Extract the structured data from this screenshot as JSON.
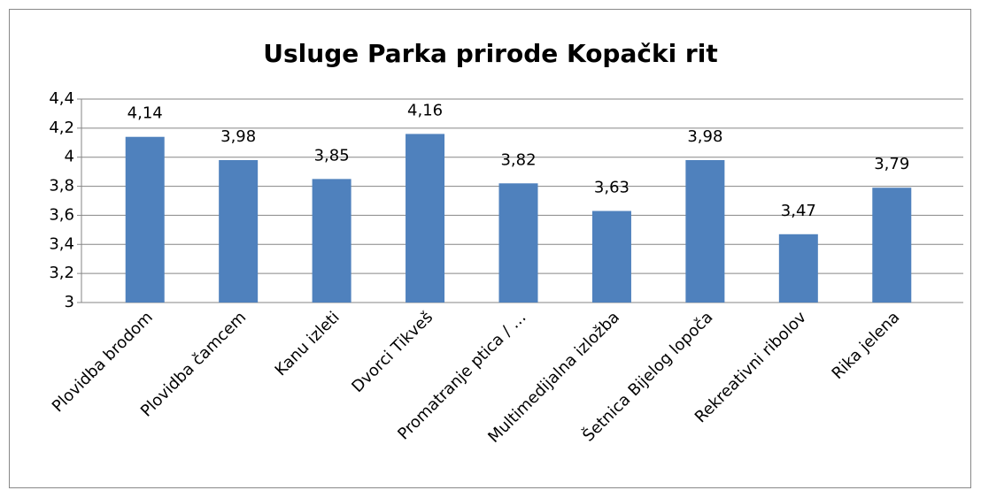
{
  "chart_data": {
    "type": "bar",
    "title": "Usluge Parka prirode Kopački rit",
    "categories": [
      "Plovidba brodom",
      "Plovidba čamcem",
      "Kanu izleti",
      "Dvorci Tikveš",
      "Promatranje ptica / …",
      "Multimedijalna izložba",
      "Šetnica Bijelog lopoča",
      "Rekreativni ribolov",
      "Rika jelena"
    ],
    "values": [
      4.14,
      3.98,
      3.85,
      4.16,
      3.82,
      3.63,
      3.98,
      3.47,
      3.79
    ],
    "value_labels": [
      "4,14",
      "3,98",
      "3,85",
      "4,16",
      "3,82",
      "3,63",
      "3,98",
      "3,47",
      "3,79"
    ],
    "color": "#4f81bd",
    "ylim": [
      3,
      4.4
    ],
    "yticks": [
      3,
      {
        "value": 3.2,
        "label": "3,2"
      },
      {
        "value": 3.4,
        "label": "3,4"
      },
      {
        "value": 3.6,
        "label": "3,6"
      },
      {
        "value": 3.8,
        "label": "3,8"
      },
      4,
      {
        "value": 4.2,
        "label": "4,2"
      },
      {
        "value": 4.4,
        "label": "4,4"
      }
    ],
    "grid": true
  }
}
